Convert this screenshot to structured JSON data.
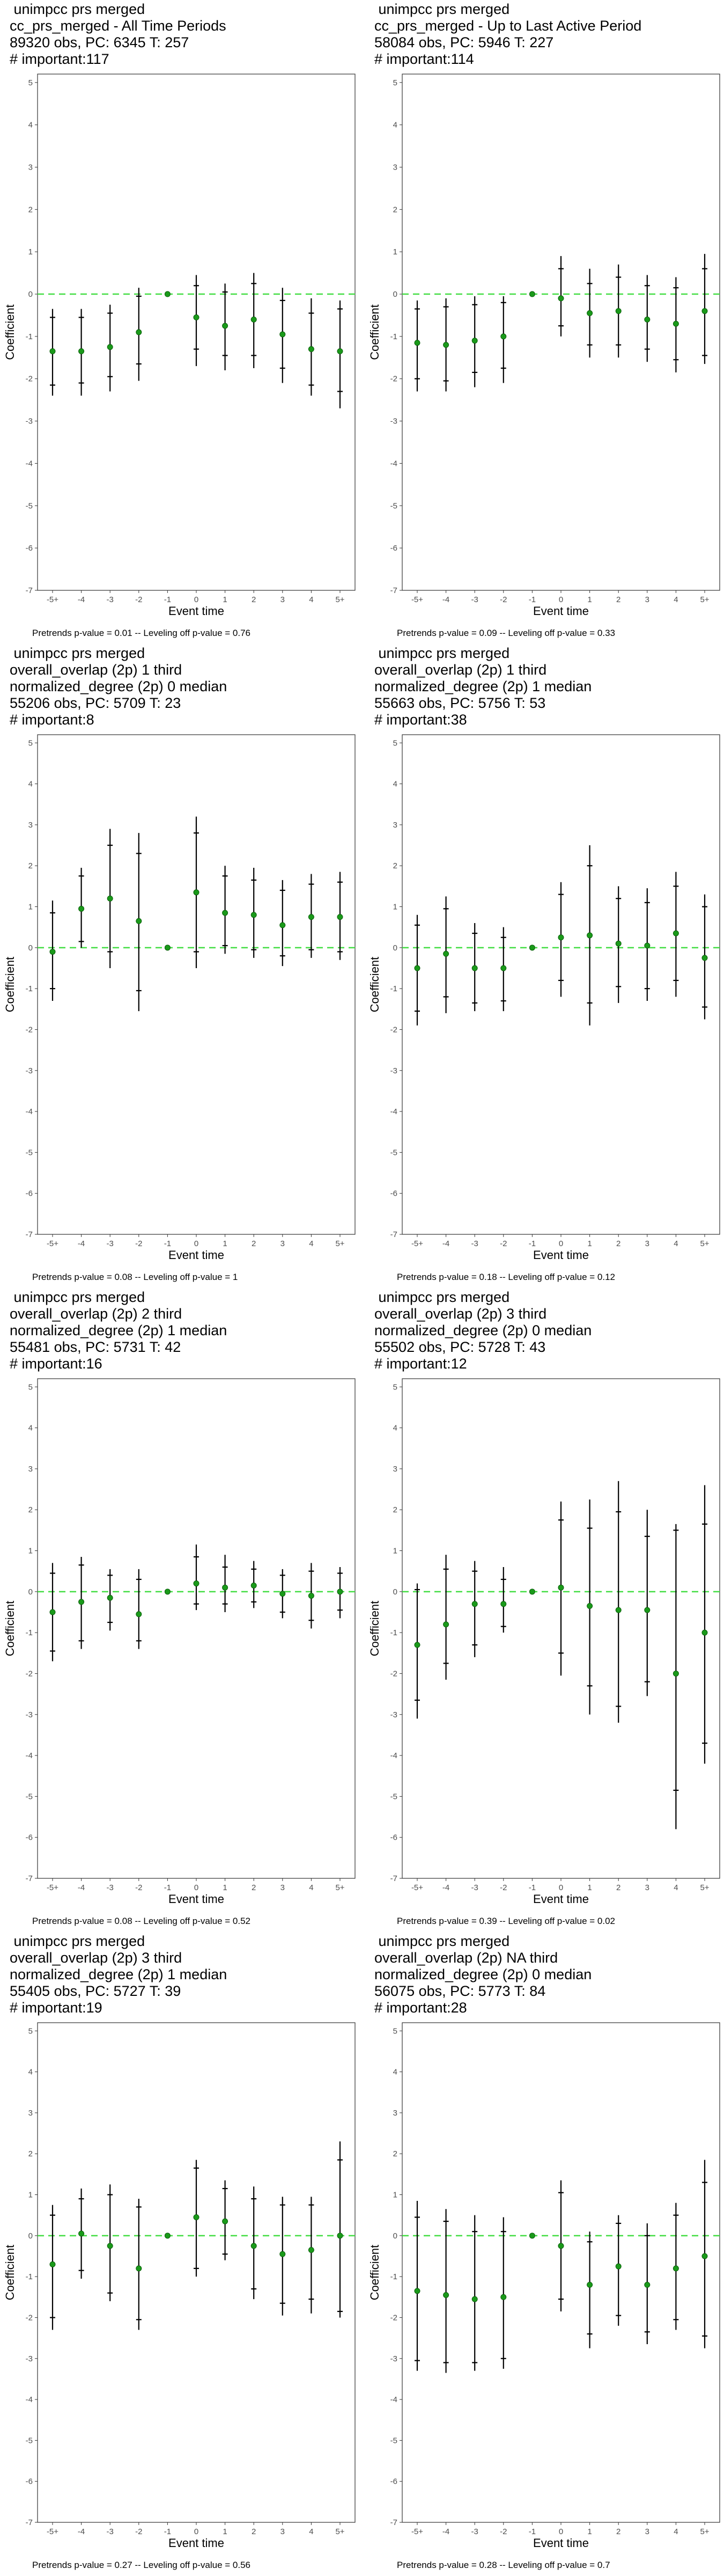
{
  "layout_labels": {
    "ylabel": "Coefficient",
    "xlabel": "Event time",
    "xticks": [
      "-5+",
      "-4",
      "-3",
      "-2",
      "-1",
      "0",
      "1",
      "2",
      "3",
      "4",
      "5+"
    ],
    "yticks": [
      5,
      4,
      3,
      2,
      1,
      0,
      -1,
      -2,
      -3,
      -4,
      -5,
      -6,
      -7
    ],
    "ylim": [
      -7,
      5.2
    ]
  },
  "colors": {
    "zero_line": "#44dd44",
    "point": "#1a9a1a",
    "errorbar": "#000000",
    "frame": "#333333"
  },
  "chart_data": [
    {
      "type": "scatter",
      "title_lines": [
        " unimpcc prs merged",
        "cc_prs_merged - All Time Periods",
        "89320 obs, PC: 6345 T: 257",
        "# important:117"
      ],
      "xlabel": "Event time",
      "ylabel": "Coefficient",
      "caption": "Pretrends p-value = 0.01 -- Leveling off p-value = 0.76",
      "categories": [
        "-5+",
        "-4",
        "-3",
        "-2",
        "-1",
        "0",
        "1",
        "2",
        "3",
        "4",
        "5+"
      ],
      "estimates": [
        -1.35,
        -1.35,
        -1.25,
        -0.9,
        0,
        -0.55,
        -0.75,
        -0.6,
        -0.95,
        -1.3,
        -1.35
      ],
      "ci_outer_low": [
        -2.4,
        -2.4,
        -2.3,
        -2.05,
        0,
        -1.7,
        -1.8,
        -1.75,
        -2.1,
        -2.4,
        -2.7
      ],
      "ci_outer_high": [
        -0.35,
        -0.35,
        -0.25,
        0.15,
        0,
        0.45,
        0.25,
        0.5,
        0.15,
        -0.1,
        -0.15
      ],
      "ci_inner_low": [
        -2.15,
        -2.1,
        -1.95,
        -1.65,
        0,
        -1.3,
        -1.45,
        -1.45,
        -1.75,
        -2.15,
        -2.3
      ],
      "ci_inner_high": [
        -0.55,
        -0.55,
        -0.45,
        -0.05,
        0,
        0.2,
        0.05,
        0.25,
        -0.15,
        -0.45,
        -0.35
      ],
      "ylim": [
        -7,
        5.2
      ]
    },
    {
      "type": "scatter",
      "title_lines": [
        " unimpcc prs merged",
        "cc_prs_merged - Up to Last Active Period",
        "58084 obs, PC: 5946 T: 227",
        "# important:114"
      ],
      "xlabel": "Event time",
      "ylabel": "Coefficient",
      "caption": "Pretrends p-value = 0.09 -- Leveling off p-value = 0.33",
      "categories": [
        "-5+",
        "-4",
        "-3",
        "-2",
        "-1",
        "0",
        "1",
        "2",
        "3",
        "4",
        "5+"
      ],
      "estimates": [
        -1.15,
        -1.2,
        -1.1,
        -1.0,
        0,
        -0.1,
        -0.45,
        -0.4,
        -0.6,
        -0.7,
        -0.4
      ],
      "ci_outer_low": [
        -2.3,
        -2.3,
        -2.2,
        -2.1,
        0,
        -1.0,
        -1.5,
        -1.5,
        -1.6,
        -1.85,
        -1.65
      ],
      "ci_outer_high": [
        -0.15,
        -0.1,
        -0.05,
        -0.05,
        0,
        0.9,
        0.6,
        0.7,
        0.45,
        0.4,
        0.95
      ],
      "ci_inner_low": [
        -2.0,
        -2.05,
        -1.85,
        -1.75,
        0,
        -0.75,
        -1.2,
        -1.2,
        -1.3,
        -1.55,
        -1.45
      ],
      "ci_inner_high": [
        -0.35,
        -0.3,
        -0.25,
        -0.2,
        0,
        0.6,
        0.25,
        0.4,
        0.2,
        0.15,
        0.6
      ],
      "ylim": [
        -7,
        5.2
      ]
    },
    {
      "type": "scatter",
      "title_lines": [
        " unimpcc prs merged",
        "overall_overlap (2p) 1 third",
        "normalized_degree (2p) 0 median",
        "55206 obs, PC: 5709 T: 23",
        "# important:8"
      ],
      "xlabel": "Event time",
      "ylabel": "Coefficient",
      "caption": "Pretrends p-value = 0.08 -- Leveling off p-value = 1",
      "categories": [
        "-5+",
        "-4",
        "-3",
        "-2",
        "-1",
        "0",
        "1",
        "2",
        "3",
        "4",
        "5+"
      ],
      "estimates": [
        -0.1,
        0.95,
        1.2,
        0.65,
        0,
        1.35,
        0.85,
        0.8,
        0.55,
        0.75,
        0.75
      ],
      "ci_outer_low": [
        -1.3,
        0.0,
        -0.5,
        -1.55,
        0,
        -0.5,
        -0.15,
        -0.25,
        -0.45,
        -0.25,
        -0.3
      ],
      "ci_outer_high": [
        1.15,
        1.95,
        2.9,
        2.8,
        0,
        3.2,
        2.0,
        1.95,
        1.65,
        1.8,
        1.85
      ],
      "ci_inner_low": [
        -1.0,
        0.15,
        -0.1,
        -1.05,
        0,
        -0.1,
        0.05,
        -0.05,
        -0.2,
        -0.05,
        -0.1
      ],
      "ci_inner_high": [
        0.85,
        1.75,
        2.5,
        2.3,
        0,
        2.8,
        1.75,
        1.65,
        1.4,
        1.55,
        1.6
      ],
      "ylim": [
        -7,
        5.2
      ]
    },
    {
      "type": "scatter",
      "title_lines": [
        " unimpcc prs merged",
        "overall_overlap (2p) 1 third",
        "normalized_degree (2p) 1 median",
        "55663 obs, PC: 5756 T: 53",
        "# important:38"
      ],
      "xlabel": "Event time",
      "ylabel": "Coefficient",
      "caption": "Pretrends p-value = 0.18 -- Leveling off p-value = 0.12",
      "categories": [
        "-5+",
        "-4",
        "-3",
        "-2",
        "-1",
        "0",
        "1",
        "2",
        "3",
        "4",
        "5+"
      ],
      "estimates": [
        -0.5,
        -0.15,
        -0.5,
        -0.5,
        0,
        0.25,
        0.3,
        0.1,
        0.05,
        0.35,
        -0.25
      ],
      "ci_outer_low": [
        -1.9,
        -1.6,
        -1.55,
        -1.55,
        0,
        -1.2,
        -1.9,
        -1.35,
        -1.3,
        -1.2,
        -1.75
      ],
      "ci_outer_high": [
        0.8,
        1.25,
        0.6,
        0.5,
        0,
        1.6,
        2.5,
        1.5,
        1.45,
        1.85,
        1.3
      ],
      "ci_inner_low": [
        -1.55,
        -1.2,
        -1.35,
        -1.3,
        0,
        -0.8,
        -1.35,
        -0.95,
        -1.0,
        -0.8,
        -1.45
      ],
      "ci_inner_high": [
        0.55,
        0.95,
        0.35,
        0.25,
        0,
        1.3,
        2.0,
        1.2,
        1.1,
        1.5,
        1.0
      ],
      "ylim": [
        -7,
        5.2
      ]
    },
    {
      "type": "scatter",
      "title_lines": [
        " unimpcc prs merged",
        "overall_overlap (2p) 2 third",
        "normalized_degree (2p) 1 median",
        "55481 obs, PC: 5731 T: 42",
        "# important:16"
      ],
      "xlabel": "Event time",
      "ylabel": "Coefficient",
      "caption": "Pretrends p-value = 0.08 -- Leveling off p-value = 0.52",
      "categories": [
        "-5+",
        "-4",
        "-3",
        "-2",
        "-1",
        "0",
        "1",
        "2",
        "3",
        "4",
        "5+"
      ],
      "estimates": [
        -0.5,
        -0.25,
        -0.15,
        -0.55,
        0,
        0.2,
        0.1,
        0.15,
        -0.05,
        -0.1,
        0.0
      ],
      "ci_outer_low": [
        -1.7,
        -1.4,
        -0.95,
        -1.4,
        0,
        -0.45,
        -0.5,
        -0.4,
        -0.65,
        -0.9,
        -0.65
      ],
      "ci_outer_high": [
        0.7,
        0.85,
        0.55,
        0.55,
        0,
        1.15,
        0.9,
        0.75,
        0.55,
        0.7,
        0.6
      ],
      "ci_inner_low": [
        -1.45,
        -1.2,
        -0.75,
        -1.2,
        0,
        -0.3,
        -0.3,
        -0.25,
        -0.5,
        -0.7,
        -0.45
      ],
      "ci_inner_high": [
        0.45,
        0.65,
        0.4,
        0.3,
        0,
        0.85,
        0.6,
        0.55,
        0.4,
        0.5,
        0.45
      ],
      "ylim": [
        -7,
        5.2
      ]
    },
    {
      "type": "scatter",
      "title_lines": [
        " unimpcc prs merged",
        "overall_overlap (2p) 3 third",
        "normalized_degree (2p) 0 median",
        "55502 obs, PC: 5728 T: 43",
        "# important:12"
      ],
      "xlabel": "Event time",
      "ylabel": "Coefficient",
      "caption": "Pretrends p-value = 0.39 -- Leveling off p-value = 0.02",
      "categories": [
        "-5+",
        "-4",
        "-3",
        "-2",
        "-1",
        "0",
        "1",
        "2",
        "3",
        "4",
        "5+"
      ],
      "estimates": [
        -1.3,
        -0.8,
        -0.3,
        -0.3,
        0,
        0.1,
        -0.35,
        -0.45,
        -0.45,
        -2.0,
        -1.0
      ],
      "ci_outer_low": [
        -3.1,
        -2.15,
        -1.6,
        -1.0,
        0,
        -2.05,
        -3.0,
        -3.2,
        -2.55,
        -5.8,
        -4.2
      ],
      "ci_outer_high": [
        0.2,
        0.9,
        0.75,
        0.6,
        0,
        2.2,
        2.25,
        2.7,
        2.0,
        1.65,
        2.6
      ],
      "ci_inner_low": [
        -2.65,
        -1.75,
        -1.3,
        -0.85,
        0,
        -1.5,
        -2.3,
        -2.8,
        -2.2,
        -4.85,
        -3.7
      ],
      "ci_inner_high": [
        0.05,
        0.55,
        0.5,
        0.3,
        0,
        1.75,
        1.55,
        1.95,
        1.35,
        1.5,
        1.65
      ],
      "ylim": [
        -7,
        5.2
      ]
    },
    {
      "type": "scatter",
      "title_lines": [
        " unimpcc prs merged",
        "overall_overlap (2p) 3 third",
        "normalized_degree (2p) 1 median",
        "55405 obs, PC: 5727 T: 39",
        "# important:19"
      ],
      "xlabel": "Event time",
      "ylabel": "Coefficient",
      "caption": "Pretrends p-value = 0.27 -- Leveling off p-value = 0.56",
      "categories": [
        "-5+",
        "-4",
        "-3",
        "-2",
        "-1",
        "0",
        "1",
        "2",
        "3",
        "4",
        "5+"
      ],
      "estimates": [
        -0.7,
        0.05,
        -0.25,
        -0.8,
        0,
        0.45,
        0.35,
        -0.25,
        -0.45,
        -0.35,
        0.0
      ],
      "ci_outer_low": [
        -2.3,
        -1.05,
        -1.6,
        -2.3,
        0,
        -1.0,
        -0.6,
        -1.55,
        -1.95,
        -1.9,
        -2.0
      ],
      "ci_outer_high": [
        0.75,
        1.15,
        1.25,
        0.9,
        0,
        1.85,
        1.35,
        1.2,
        0.95,
        0.95,
        2.3
      ],
      "ci_inner_low": [
        -2.0,
        -0.85,
        -1.4,
        -2.05,
        0,
        -0.8,
        -0.45,
        -1.3,
        -1.65,
        -1.55,
        -1.85
      ],
      "ci_inner_high": [
        0.5,
        0.9,
        1.0,
        0.7,
        0,
        1.65,
        1.15,
        0.9,
        0.75,
        0.75,
        1.85
      ],
      "ylim": [
        -7,
        5.2
      ]
    },
    {
      "type": "scatter",
      "title_lines": [
        " unimpcc prs merged",
        "overall_overlap (2p) NA third",
        "normalized_degree (2p) 0 median",
        "56075 obs, PC: 5773 T: 84",
        "# important:28"
      ],
      "xlabel": "Event time",
      "ylabel": "Coefficient",
      "caption": "Pretrends p-value = 0.28 -- Leveling off p-value = 0.7",
      "categories": [
        "-5+",
        "-4",
        "-3",
        "-2",
        "-1",
        "0",
        "1",
        "2",
        "3",
        "4",
        "5+"
      ],
      "estimates": [
        -1.35,
        -1.45,
        -1.55,
        -1.5,
        0,
        -0.25,
        -1.2,
        -0.75,
        -1.2,
        -0.8,
        -0.5
      ],
      "ci_outer_low": [
        -3.3,
        -3.35,
        -3.3,
        -3.25,
        0,
        -1.85,
        -2.75,
        -2.2,
        -2.65,
        -2.3,
        -2.75
      ],
      "ci_outer_high": [
        0.85,
        0.65,
        0.5,
        0.45,
        0,
        1.35,
        0.1,
        0.5,
        0.3,
        0.8,
        1.85
      ],
      "ci_inner_low": [
        -3.05,
        -3.1,
        -3.1,
        -3.0,
        0,
        -1.55,
        -2.4,
        -1.95,
        -2.35,
        -2.05,
        -2.45
      ],
      "ci_inner_high": [
        0.45,
        0.35,
        0.1,
        0.1,
        0,
        1.05,
        -0.15,
        0.3,
        0.0,
        0.5,
        1.3
      ],
      "ylim": [
        -7,
        5.2
      ]
    }
  ]
}
